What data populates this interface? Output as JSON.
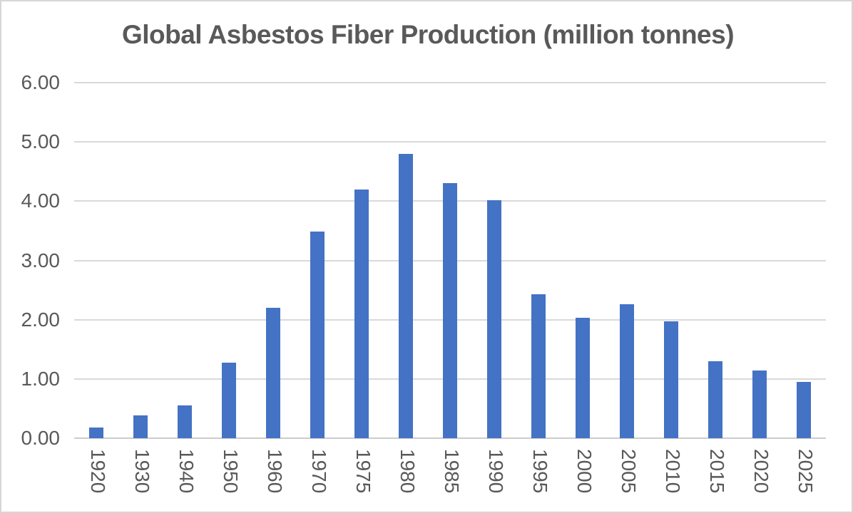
{
  "chart_data": {
    "type": "bar",
    "title": "Global Asbestos Fiber Production (million tonnes)",
    "categories": [
      "1920",
      "1930",
      "1940",
      "1950",
      "1960",
      "1970",
      "1975",
      "1980",
      "1985",
      "1990",
      "1995",
      "2000",
      "2005",
      "2010",
      "2015",
      "2020",
      "2025"
    ],
    "values": [
      0.18,
      0.38,
      0.55,
      1.28,
      2.2,
      3.49,
      4.2,
      4.8,
      4.31,
      4.02,
      2.43,
      2.03,
      2.26,
      1.97,
      1.3,
      1.14,
      0.95
    ],
    "xlabel": "",
    "ylabel": "",
    "ylim": [
      0,
      6
    ],
    "ytick_step": 1,
    "ytick_labels": [
      "0.00",
      "1.00",
      "2.00",
      "3.00",
      "4.00",
      "5.00",
      "6.00"
    ],
    "grid": true,
    "legend_position": "none",
    "bar_color": "#4472C4",
    "text_color": "#595959",
    "gridline_color": "#D9D9D9",
    "background_color": "#FFFFFF"
  }
}
